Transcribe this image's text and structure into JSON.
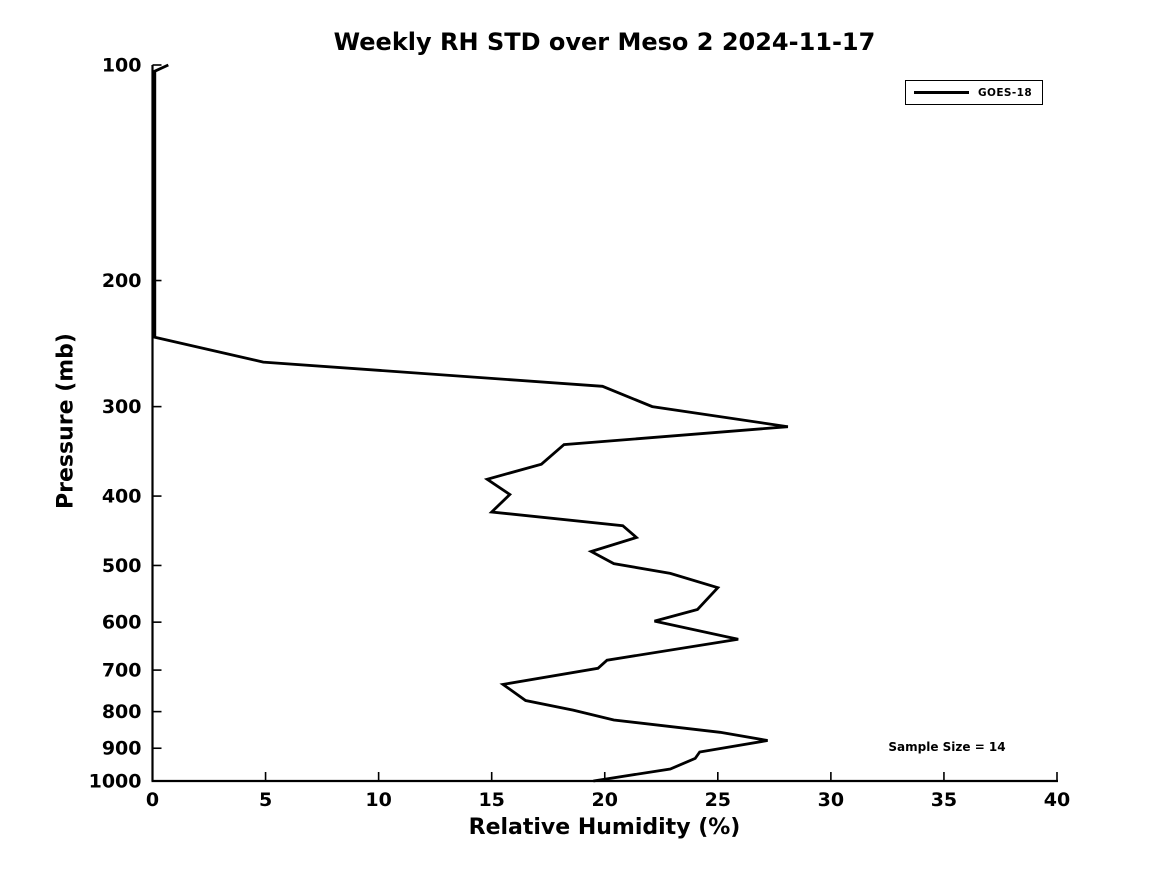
{
  "title": "Weekly RH STD over Meso 2 2024-11-17",
  "annotation": {
    "text": "Sample Size = 14"
  },
  "legend": {
    "position": "upper right",
    "entries": [
      {
        "label": "GOES-18",
        "color": "#000000"
      }
    ]
  },
  "colors": {
    "line": "#000000",
    "axes": "#000000",
    "background": "#ffffff"
  },
  "chart_data": {
    "type": "line",
    "title": "Weekly RH STD over Meso 2 2024-11-17",
    "xlabel": "Relative Humidity (%)",
    "ylabel": "Pressure (mb)",
    "xlim": [
      0,
      40
    ],
    "ylim": [
      100,
      1000
    ],
    "y_scale": "log",
    "y_inverted": true,
    "grid": false,
    "tick_direction": "in",
    "x_ticks": [
      0,
      5,
      10,
      15,
      20,
      25,
      30,
      35,
      40
    ],
    "y_ticks": [
      100,
      200,
      300,
      400,
      500,
      600,
      700,
      800,
      900,
      1000
    ],
    "legend_position": "upper right",
    "series": [
      {
        "name": "GOES-18",
        "color": "#000000",
        "x_is": "relative_humidity_std_percent",
        "y_is": "pressure_mb",
        "points": [
          [
            0.7,
            100
          ],
          [
            0.1,
            102
          ],
          [
            0.1,
            240
          ],
          [
            4.9,
            260
          ],
          [
            19.9,
            281
          ],
          [
            22.1,
            300
          ],
          [
            28.1,
            320
          ],
          [
            18.2,
            339
          ],
          [
            17.2,
            361
          ],
          [
            14.8,
            379
          ],
          [
            15.8,
            398
          ],
          [
            15.0,
            421
          ],
          [
            20.8,
            440
          ],
          [
            21.4,
            457
          ],
          [
            19.4,
            478
          ],
          [
            20.4,
            497
          ],
          [
            22.9,
            513
          ],
          [
            25.0,
            537
          ],
          [
            24.1,
            576
          ],
          [
            22.2,
            598
          ],
          [
            25.9,
            634
          ],
          [
            20.1,
            678
          ],
          [
            19.7,
            696
          ],
          [
            15.5,
            733
          ],
          [
            16.5,
            772
          ],
          [
            18.6,
            796
          ],
          [
            20.4,
            822
          ],
          [
            25.1,
            855
          ],
          [
            27.2,
            878
          ],
          [
            24.2,
            911
          ],
          [
            24.0,
            930
          ],
          [
            22.9,
            962
          ],
          [
            19.5,
            1000
          ]
        ]
      }
    ],
    "annotations": [
      {
        "text": "Sample Size = 14",
        "x": 35.1,
        "y": 900
      }
    ]
  }
}
